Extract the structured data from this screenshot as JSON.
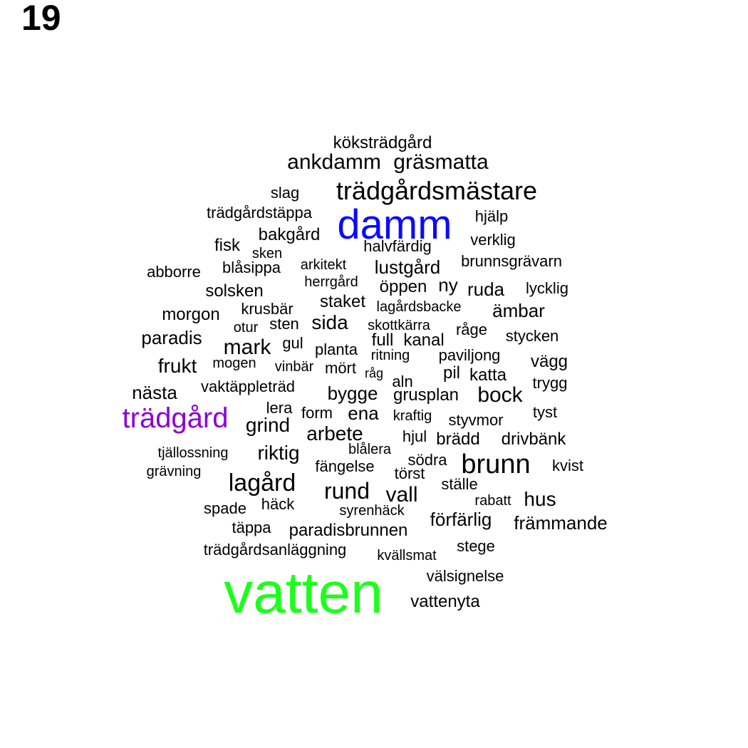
{
  "figure_number": "19",
  "colors": {
    "default": "#000000",
    "vatten": "#1cff1c",
    "damm": "#0a0aff",
    "tradgard": "#8b00d9"
  },
  "words": [
    {
      "text": "köksträdgård"
    },
    {
      "text": "ankdamm"
    },
    {
      "text": "gräsmatta"
    },
    {
      "text": "trädgårdsmästare"
    },
    {
      "text": "slag"
    },
    {
      "text": "trädgårdstäppa"
    },
    {
      "text": "damm",
      "color": "damm"
    },
    {
      "text": "hjälp"
    },
    {
      "text": "bakgård"
    },
    {
      "text": "verklig"
    },
    {
      "text": "fisk"
    },
    {
      "text": "sken"
    },
    {
      "text": "halvfärdig"
    },
    {
      "text": "abborre"
    },
    {
      "text": "blåsippa"
    },
    {
      "text": "arkitekt"
    },
    {
      "text": "lustgård"
    },
    {
      "text": "brunnsgrävarn"
    },
    {
      "text": "herrgård"
    },
    {
      "text": "solsken"
    },
    {
      "text": "öppen"
    },
    {
      "text": "ny"
    },
    {
      "text": "ruda"
    },
    {
      "text": "lycklig"
    },
    {
      "text": "staket"
    },
    {
      "text": "morgon"
    },
    {
      "text": "krusbär"
    },
    {
      "text": "lagårdsbacke"
    },
    {
      "text": "ämbar"
    },
    {
      "text": "sida"
    },
    {
      "text": "otur"
    },
    {
      "text": "sten"
    },
    {
      "text": "skottkärra"
    },
    {
      "text": "paradis"
    },
    {
      "text": "råge"
    },
    {
      "text": "stycken"
    },
    {
      "text": "mark"
    },
    {
      "text": "gul"
    },
    {
      "text": "full"
    },
    {
      "text": "kanal"
    },
    {
      "text": "planta"
    },
    {
      "text": "frukt"
    },
    {
      "text": "mogen"
    },
    {
      "text": "ritning"
    },
    {
      "text": "paviljong"
    },
    {
      "text": "vägg"
    },
    {
      "text": "vinbär"
    },
    {
      "text": "mört"
    },
    {
      "text": "pil"
    },
    {
      "text": "katta"
    },
    {
      "text": "råg"
    },
    {
      "text": "nästa"
    },
    {
      "text": "vaktäppleträd"
    },
    {
      "text": "aln"
    },
    {
      "text": "trygg"
    },
    {
      "text": "bygge"
    },
    {
      "text": "grusplan"
    },
    {
      "text": "bock"
    },
    {
      "text": "trädgård",
      "color": "tradgard"
    },
    {
      "text": "lera"
    },
    {
      "text": "form"
    },
    {
      "text": "ena"
    },
    {
      "text": "kraftig"
    },
    {
      "text": "tyst"
    },
    {
      "text": "styvmor"
    },
    {
      "text": "grind"
    },
    {
      "text": "arbete"
    },
    {
      "text": "hjul"
    },
    {
      "text": "brädd"
    },
    {
      "text": "drivbänk"
    },
    {
      "text": "tjällossning"
    },
    {
      "text": "riktig"
    },
    {
      "text": "blålera"
    },
    {
      "text": "södra"
    },
    {
      "text": "brunn"
    },
    {
      "text": "grävning"
    },
    {
      "text": "fängelse"
    },
    {
      "text": "kvist"
    },
    {
      "text": "törst"
    },
    {
      "text": "lagård"
    },
    {
      "text": "rund"
    },
    {
      "text": "vall"
    },
    {
      "text": "ställe"
    },
    {
      "text": "hus"
    },
    {
      "text": "rabatt"
    },
    {
      "text": "spade"
    },
    {
      "text": "häck"
    },
    {
      "text": "syrenhäck"
    },
    {
      "text": "förfärlig"
    },
    {
      "text": "främmande"
    },
    {
      "text": "täppa"
    },
    {
      "text": "paradisbrunnen"
    },
    {
      "text": "stege"
    },
    {
      "text": "trädgårdsanläggning"
    },
    {
      "text": "kvällsmat"
    },
    {
      "text": "välsignelse"
    },
    {
      "text": "vatten",
      "color": "vatten"
    },
    {
      "text": "vattenyta"
    }
  ]
}
